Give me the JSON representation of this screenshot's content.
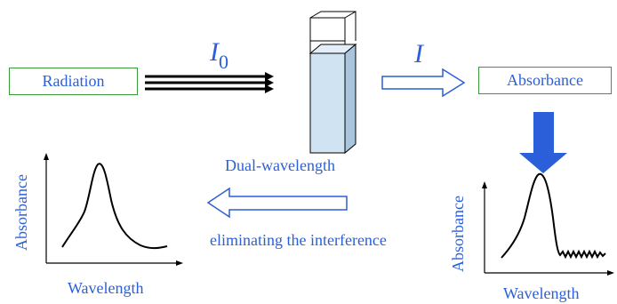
{
  "source_box": {
    "label": "Radiation"
  },
  "result_box": {
    "label": "Absorbance"
  },
  "incident_intensity": {
    "symbol": "I",
    "subscript": "0"
  },
  "transmitted_intensity": {
    "symbol": "I"
  },
  "method_label": "Dual-wavelength",
  "process_label": "eliminating the interference",
  "left_plot": {
    "xlabel": "Wavelength",
    "ylabel": "Absorbance"
  },
  "right_plot": {
    "xlabel": "Wavelength",
    "ylabel": "Absorbance"
  },
  "colors": {
    "text": "#2b5fd9",
    "box_border": "#3a9a3a",
    "arrow_fill": "#2b5fd9",
    "cuvette_fill": "#cfe3f3"
  }
}
